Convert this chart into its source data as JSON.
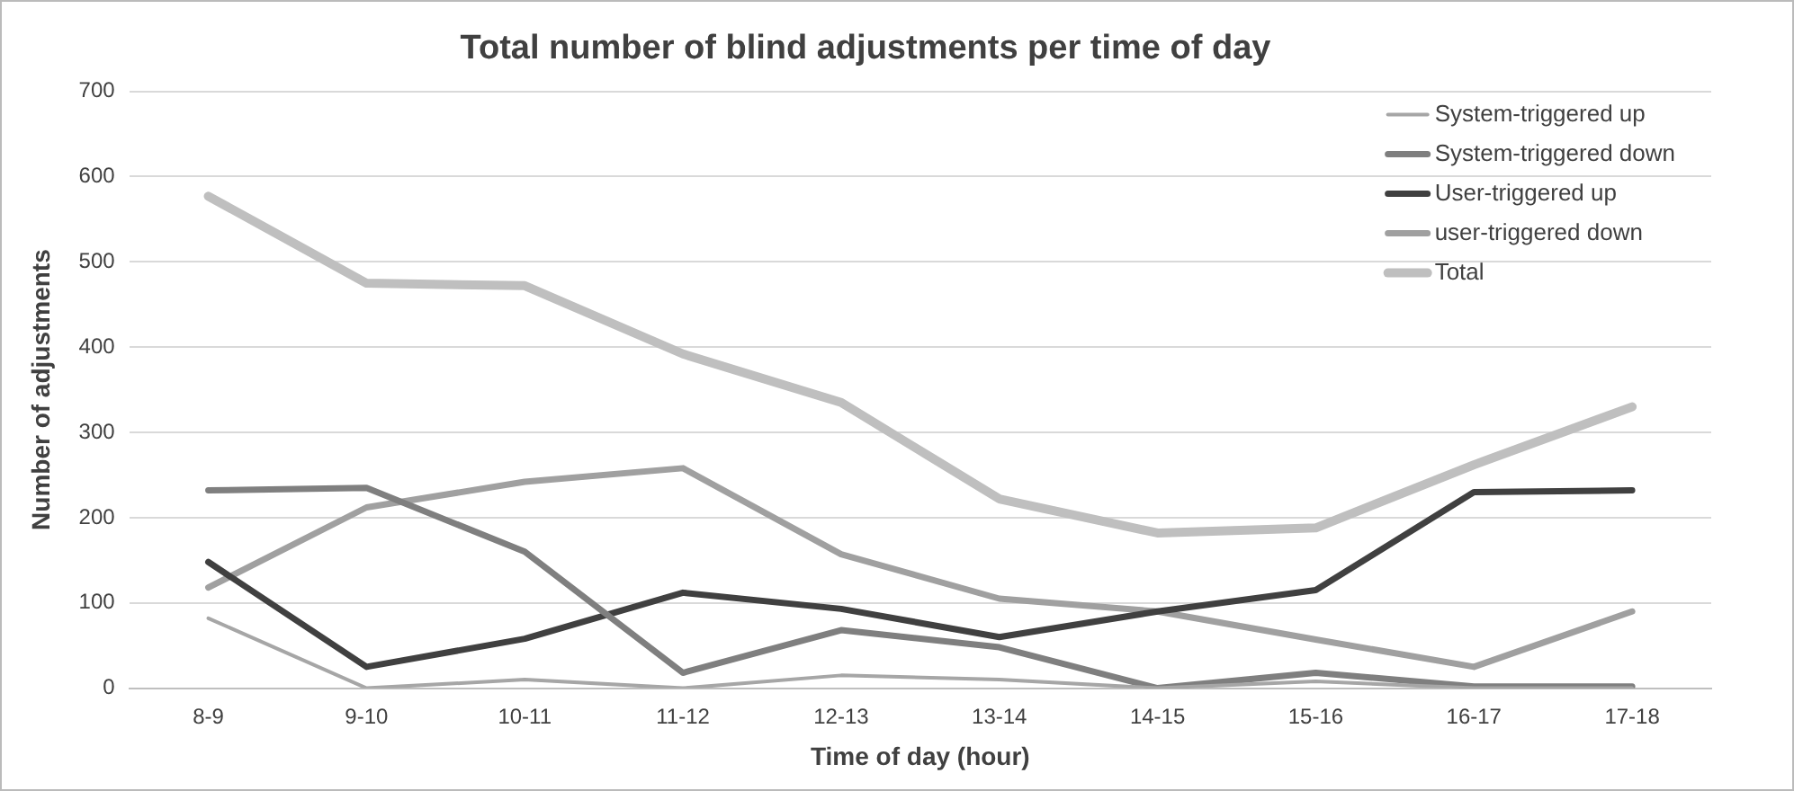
{
  "chart_data": {
    "type": "line",
    "title": "Total number of blind adjustments per time of day",
    "xlabel": "Time of day (hour)",
    "ylabel": "Number of adjustments",
    "categories": [
      "8-9",
      "9-10",
      "10-11",
      "11-12",
      "12-13",
      "13-14",
      "14-15",
      "15-16",
      "16-17",
      "17-18"
    ],
    "series": [
      {
        "name": "System-triggered up",
        "color": "#a6a6a6",
        "values": [
          82,
          0,
          10,
          0,
          15,
          10,
          0,
          8,
          0,
          0
        ]
      },
      {
        "name": "System-triggered down",
        "color": "#7f7f7f",
        "values": [
          232,
          235,
          160,
          18,
          68,
          48,
          0,
          18,
          2,
          2
        ]
      },
      {
        "name": "User-triggered up",
        "color": "#404040",
        "values": [
          148,
          25,
          58,
          112,
          93,
          60,
          90,
          115,
          230,
          232
        ]
      },
      {
        "name": "user-triggered down",
        "color": "#a0a0a0",
        "values": [
          118,
          212,
          242,
          258,
          157,
          105,
          90,
          57,
          25,
          90
        ]
      },
      {
        "name": "Total",
        "color": "#bfbfbf",
        "values": [
          577,
          475,
          472,
          392,
          335,
          222,
          182,
          188,
          262,
          330
        ]
      }
    ],
    "ylim": [
      0,
      700
    ],
    "yticks": [
      0,
      100,
      200,
      300,
      400,
      500,
      600,
      700
    ],
    "grid": "y",
    "legend": "top right",
    "marker": "none",
    "line_style": "solid"
  }
}
